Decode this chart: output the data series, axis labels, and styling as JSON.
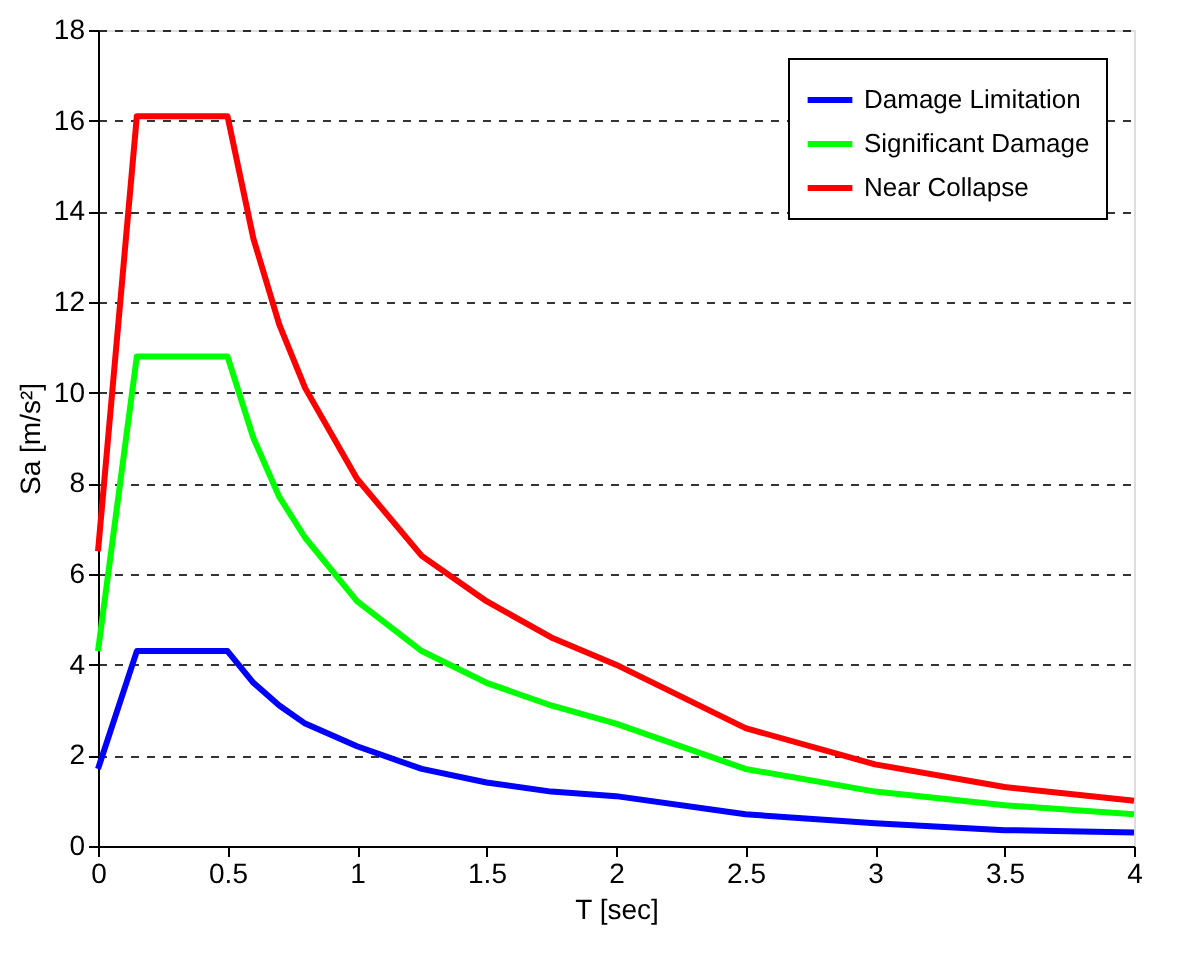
{
  "chart_data": {
    "type": "line",
    "xlabel": "T [sec]",
    "ylabel": "Sa [m/s²]",
    "x": [
      0,
      0.15,
      0.5,
      0.6,
      0.7,
      0.8,
      1.0,
      1.25,
      1.5,
      1.75,
      2.0,
      2.5,
      3.0,
      3.5,
      4.0
    ],
    "series": [
      {
        "name": "Damage Limitation",
        "color": "#0000ff",
        "values": [
          1.7,
          4.3,
          4.3,
          3.6,
          3.1,
          2.7,
          2.2,
          1.7,
          1.4,
          1.2,
          1.1,
          0.7,
          0.5,
          0.35,
          0.3
        ]
      },
      {
        "name": "Significant Damage",
        "color": "#00ff00",
        "values": [
          4.3,
          10.8,
          10.8,
          9.0,
          7.7,
          6.8,
          5.4,
          4.3,
          3.6,
          3.1,
          2.7,
          1.7,
          1.2,
          0.9,
          0.7
        ]
      },
      {
        "name": "Near Collapse",
        "color": "#ff0000",
        "values": [
          6.5,
          16.1,
          16.1,
          13.4,
          11.5,
          10.1,
          8.1,
          6.4,
          5.4,
          4.6,
          4.0,
          2.6,
          1.8,
          1.3,
          1.0
        ]
      }
    ],
    "xlim": [
      0,
      4
    ],
    "xticks": [
      0,
      0.5,
      1,
      1.5,
      2,
      2.5,
      3,
      3.5,
      4
    ],
    "ylim": [
      0,
      18
    ],
    "yticks": [
      0,
      2,
      4,
      6,
      8,
      10,
      12,
      14,
      16,
      18
    ],
    "grid": "y",
    "legend": "top right",
    "line_style": "solid"
  }
}
